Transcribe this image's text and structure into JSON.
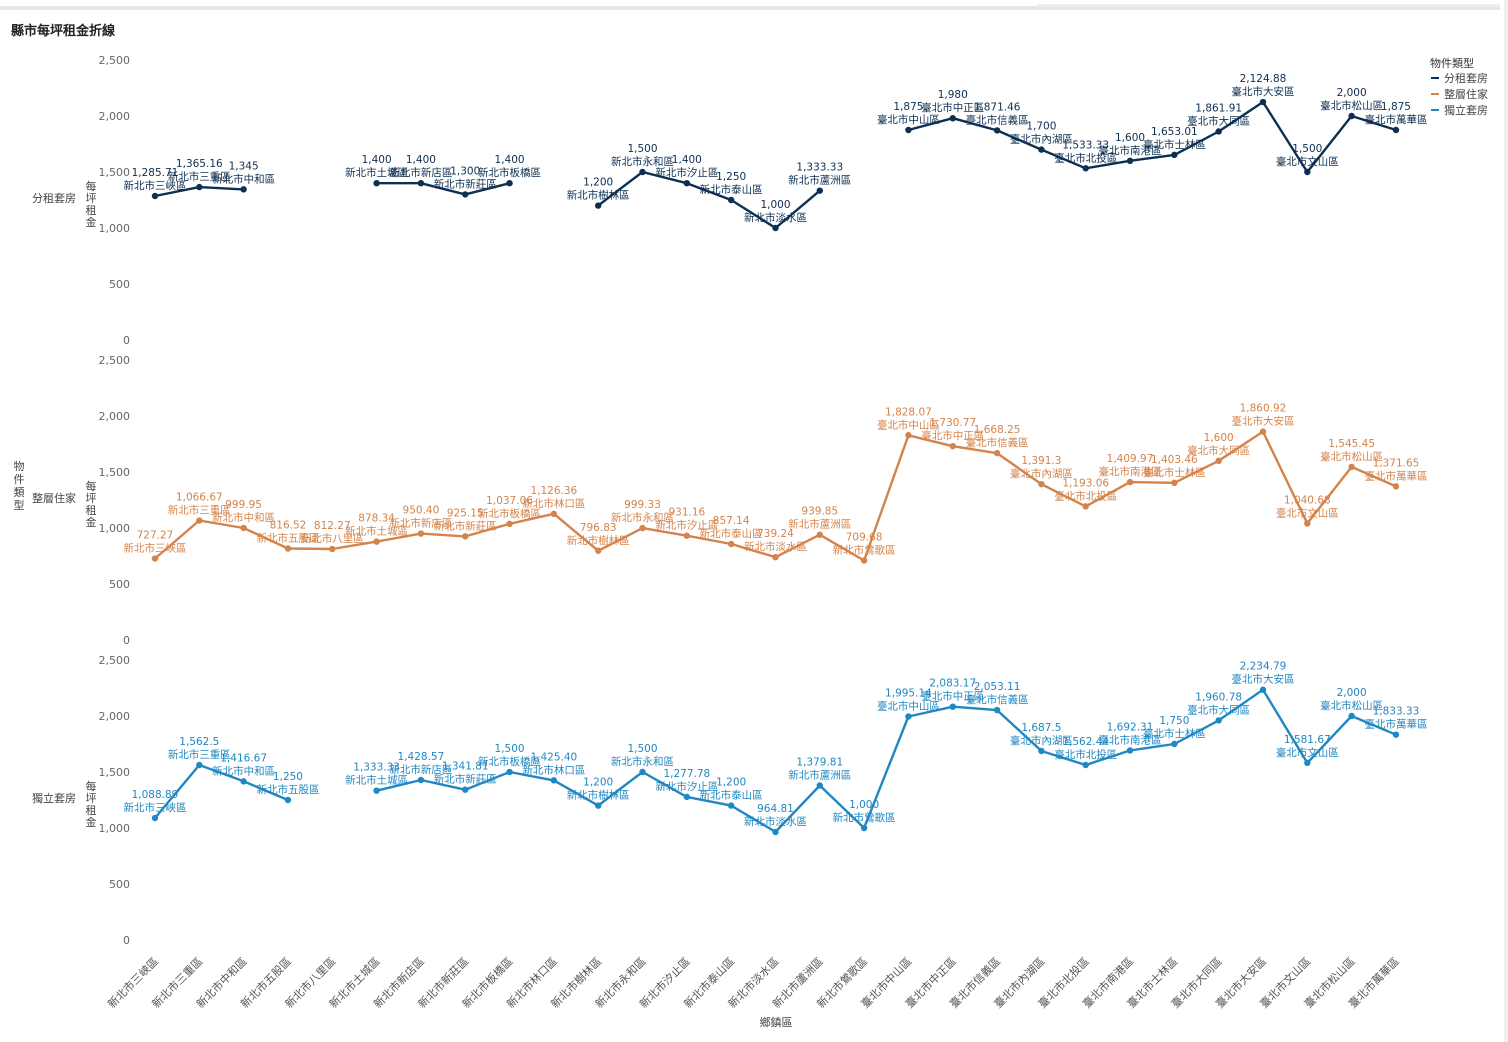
{
  "title": "縣市每坪租金折線",
  "chart_data": {
    "type": "line",
    "title": "縣市每坪租金折線",
    "xlabel": "鄉鎮區",
    "ylabel": "每坪租金",
    "row_axis_label": "物件類型",
    "legend": {
      "title": "物件類型",
      "placement": "top-right"
    },
    "ylim": [
      0,
      2500
    ],
    "yticks": [
      "0",
      "500",
      "1,000",
      "1,500",
      "2,000",
      "2,500"
    ],
    "categories": [
      "新北市三峽區",
      "新北市三重區",
      "新北市中和區",
      "新北市五股區",
      "新北市八里區",
      "新北市土城區",
      "新北市新店區",
      "新北市新莊區",
      "新北市板橋區",
      "新北市林口區",
      "新北市樹林區",
      "新北市永和區",
      "新北市汐止區",
      "新北市泰山區",
      "新北市淡水區",
      "新北市蘆洲區",
      "新北市鶯歌區",
      "臺北市中山區",
      "臺北市中正區",
      "臺北市信義區",
      "臺北市內湖區",
      "臺北市北投區",
      "臺北市南港區",
      "臺北市士林區",
      "臺北市大同區",
      "臺北市大安區",
      "臺北市文山區",
      "臺北市松山區",
      "臺北市萬華區"
    ],
    "series": [
      {
        "name": "分租套房",
        "color": "#0d2f52",
        "values": [
          1285.71,
          1365.16,
          1345,
          null,
          null,
          1400,
          1400,
          1300,
          1400,
          null,
          1200,
          1500,
          1400,
          1250,
          1000,
          1333.33,
          null,
          1875,
          1980,
          1871.46,
          1700,
          1533.33,
          1600,
          1653.01,
          1861.91,
          2124.88,
          1500,
          2000,
          1875
        ],
        "labels": [
          "1,285.71",
          "1,365.16",
          "1,345",
          "",
          "",
          "1,400",
          "1,400",
          "1,300",
          "1,400",
          "",
          "1,200",
          "1,500",
          "1,400",
          "1,250",
          "1,000",
          "1,333.33",
          "",
          "1,875",
          "1,980",
          "1,871.46",
          "1,700",
          "1,533.33",
          "1,600",
          "1,653.01",
          "1,861.91",
          "2,124.88",
          "1,500",
          "2,000",
          "1,875"
        ]
      },
      {
        "name": "整層住家",
        "color": "#d4834a",
        "values": [
          727.27,
          1066.67,
          999.95,
          816.52,
          812.27,
          878.34,
          950.4,
          925.15,
          1037.06,
          1126.36,
          796.83,
          999.33,
          931.16,
          857.14,
          739.24,
          939.85,
          709.68,
          1828.07,
          1730.77,
          1668.25,
          1391.3,
          1193.06,
          1409.97,
          1403.46,
          1600,
          1860.92,
          1040.68,
          1545.45,
          1371.65
        ],
        "labels": [
          "727.27",
          "1,066.67",
          "999.95",
          "816.52",
          "812.27",
          "878.34",
          "950.40",
          "925.15",
          "1,037.06",
          "1,126.36",
          "796.83",
          "999.33",
          "931.16",
          "857.14",
          "739.24",
          "939.85",
          "709.68",
          "1,828.07",
          "1,730.77",
          "1,668.25",
          "1,391.3",
          "1,193.06",
          "1,409.97",
          "1,403.46",
          "1,600",
          "1,860.92",
          "1,040.68",
          "1,545.45",
          "1,371.65"
        ]
      },
      {
        "name": "獨立套房",
        "color": "#1f87c2",
        "values": [
          1088.89,
          1562.5,
          1416.67,
          1250,
          null,
          1333.33,
          1428.57,
          1341.81,
          1500,
          1425.4,
          1200,
          1500,
          1277.78,
          1200,
          964.81,
          1379.81,
          1000,
          1995.14,
          2083.17,
          2053.11,
          1687.5,
          1562.44,
          1692.31,
          1750,
          1960.78,
          2234.79,
          1581.67,
          2000,
          1833.33
        ],
        "labels": [
          "1,088.89",
          "1,562.5",
          "1,416.67",
          "1,250",
          "",
          "1,333.33",
          "1,428.57",
          "1,341.81",
          "1,500",
          "1,425.40",
          "1,200",
          "1,500",
          "1,277.78",
          "1,200",
          "964.81",
          "1,379.81",
          "1,000",
          "1,995.14",
          "2,083.17",
          "2,053.11",
          "1,687.5",
          "1,562.44",
          "1,692.31",
          "1,750",
          "1,960.78",
          "2,234.79",
          "1,581.67",
          "2,000",
          "1,833.33"
        ]
      }
    ]
  }
}
